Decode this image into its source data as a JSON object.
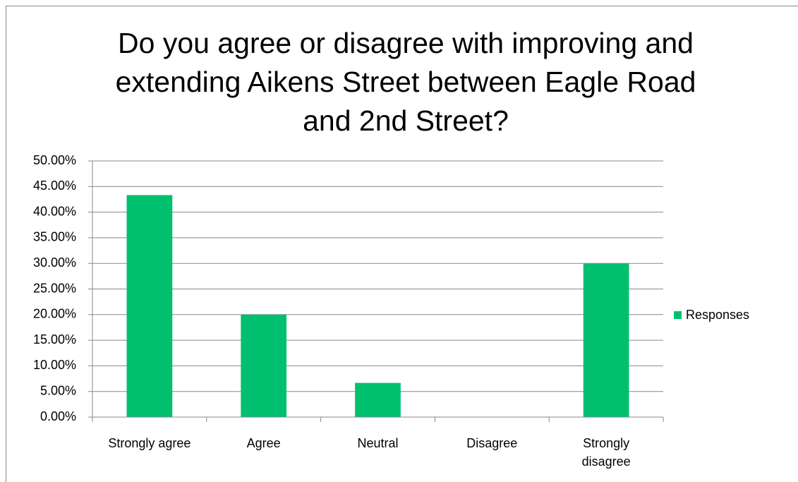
{
  "chart_data": {
    "type": "bar",
    "title": "Do you agree or disagree with improving and extending Aikens Street between Eagle Road and 2nd Street?",
    "categories": [
      "Strongly agree",
      "Agree",
      "Neutral",
      "Disagree",
      "Strongly disagree"
    ],
    "series": [
      {
        "name": "Responses",
        "color": "#00c06f",
        "values": [
          43.33,
          20,
          6.67,
          0,
          30
        ]
      }
    ],
    "ylim": [
      0,
      50
    ],
    "yticks": [
      {
        "value": 0,
        "label": "0.00%"
      },
      {
        "value": 5,
        "label": "5.00%"
      },
      {
        "value": 10,
        "label": "10.00%"
      },
      {
        "value": 15,
        "label": "15.00%"
      },
      {
        "value": 20,
        "label": "20.00%"
      },
      {
        "value": 25,
        "label": "25.00%"
      },
      {
        "value": 30,
        "label": "30.00%"
      },
      {
        "value": 35,
        "label": "35.00%"
      },
      {
        "value": 40,
        "label": "40.00%"
      },
      {
        "value": 45,
        "label": "45.00%"
      },
      {
        "value": 50,
        "label": "50.00%"
      }
    ],
    "grid": true,
    "legend": "right"
  }
}
